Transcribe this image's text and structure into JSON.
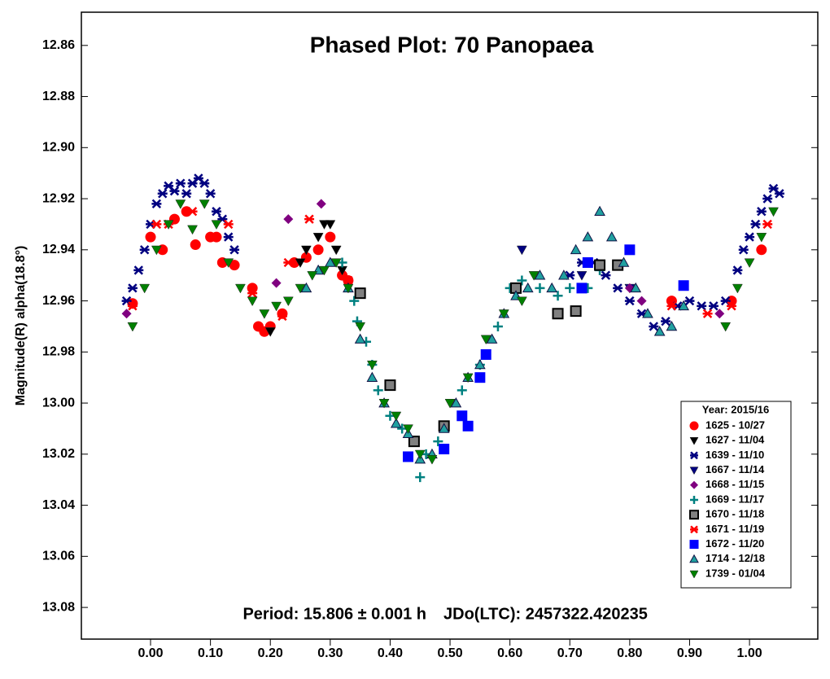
{
  "chart_data": {
    "type": "scatter",
    "title": "Phased Plot: 70 Panopaea",
    "ylabel": "Magnitude(R) alpha(18.8°)",
    "annotations": [
      "Period: 15.806 ± 0.001 h",
      "JDo(LTC): 2457322.420235"
    ],
    "legend_title": "Year: 2015/16",
    "legend": "lower right",
    "y_inverted": true,
    "xlim": [
      -0.1155,
      1.114
    ],
    "ylim": [
      12.847,
      13.0924
    ],
    "xticks": [
      {
        "value": 0,
        "label": "0.00"
      },
      {
        "value": 0.1,
        "label": "0.10"
      },
      {
        "value": 0.2,
        "label": "0.20"
      },
      {
        "value": 0.3,
        "label": "0.30"
      },
      {
        "value": 0.4,
        "label": "0.40"
      },
      {
        "value": 0.5,
        "label": "0.50"
      },
      {
        "value": 0.6,
        "label": "0.60"
      },
      {
        "value": 0.7,
        "label": "0.70"
      },
      {
        "value": 0.8,
        "label": "0.80"
      },
      {
        "value": 0.9,
        "label": "0.90"
      },
      {
        "value": 1,
        "label": "1.00"
      }
    ],
    "yticks": [
      12.86,
      12.88,
      {
        "value": 12.9,
        "label": "12.90"
      },
      12.92,
      12.94,
      12.96,
      12.98,
      {
        "value": 13,
        "label": "13.00"
      },
      13.02,
      13.04,
      13.06,
      13.08
    ],
    "series": [
      {
        "name": "1625 - 10/27",
        "color": "#ff0000",
        "marker": "circle",
        "x": [
          -0.03,
          0.0,
          0.02,
          0.04,
          0.06,
          0.075,
          0.1,
          0.11,
          0.12,
          0.14,
          0.17,
          0.18,
          0.19,
          0.2,
          0.22,
          0.24,
          0.26,
          0.28,
          0.3,
          0.32,
          0.33,
          0.87,
          0.97,
          1.02
        ],
        "values": [
          12.961,
          12.935,
          12.94,
          12.928,
          12.925,
          12.938,
          12.935,
          12.935,
          12.945,
          12.946,
          12.955,
          12.97,
          12.972,
          12.97,
          12.965,
          12.945,
          12.943,
          12.94,
          12.935,
          12.95,
          12.952,
          12.96,
          12.96,
          12.94
        ]
      },
      {
        "name": "1627 - 11/04",
        "color": "#000000",
        "marker": "tridown",
        "x": [
          0.2,
          0.25,
          0.26,
          0.28,
          0.29,
          0.3,
          0.31,
          0.32
        ],
        "values": [
          12.972,
          12.945,
          12.94,
          12.935,
          12.93,
          12.93,
          12.94,
          12.948
        ]
      },
      {
        "name": "1639 - 11/10",
        "color": "#000080",
        "marker": "asterisk",
        "x": [
          -0.04,
          -0.03,
          -0.02,
          -0.01,
          0.0,
          0.01,
          0.02,
          0.03,
          0.04,
          0.05,
          0.06,
          0.07,
          0.08,
          0.09,
          0.1,
          0.11,
          0.12,
          0.13,
          0.14,
          0.7,
          0.72,
          0.74,
          0.76,
          0.78,
          0.8,
          0.82,
          0.84,
          0.86,
          0.88,
          0.9,
          0.92,
          0.94,
          0.96,
          0.98,
          0.99,
          1.0,
          1.01,
          1.02,
          1.03,
          1.04,
          1.05
        ],
        "values": [
          12.96,
          12.955,
          12.948,
          12.94,
          12.93,
          12.922,
          12.918,
          12.915,
          12.917,
          12.914,
          12.918,
          12.914,
          12.912,
          12.914,
          12.918,
          12.925,
          12.928,
          12.935,
          12.94,
          12.95,
          12.945,
          12.945,
          12.95,
          12.955,
          12.96,
          12.965,
          12.97,
          12.968,
          12.962,
          12.96,
          12.962,
          12.962,
          12.96,
          12.948,
          12.94,
          12.935,
          12.93,
          12.925,
          12.92,
          12.916,
          12.918
        ]
      },
      {
        "name": "1667 - 11/14",
        "color": "#000080",
        "marker": "tridown",
        "x": [
          0.62,
          0.72,
          0.8
        ],
        "values": [
          12.94,
          12.95,
          12.955
        ]
      },
      {
        "name": "1668 - 11/15",
        "color": "#800080",
        "marker": "diamond",
        "x": [
          -0.04,
          0.21,
          0.23,
          0.285,
          0.8,
          0.82,
          0.95
        ],
        "values": [
          12.965,
          12.953,
          12.928,
          12.922,
          12.955,
          12.96,
          12.965
        ]
      },
      {
        "name": "1669 - 11/17",
        "color": "#008080",
        "marker": "plus",
        "x": [
          0.32,
          0.34,
          0.345,
          0.36,
          0.37,
          0.38,
          0.4,
          0.42,
          0.44,
          0.45,
          0.46,
          0.48,
          0.52,
          0.55,
          0.58,
          0.6,
          0.62,
          0.65,
          0.68,
          0.7,
          0.73,
          0.75
        ],
        "values": [
          12.945,
          12.96,
          12.968,
          12.976,
          12.985,
          12.995,
          13.005,
          13.01,
          13.015,
          13.029,
          13.02,
          13.015,
          12.995,
          12.985,
          12.97,
          12.955,
          12.952,
          12.955,
          12.958,
          12.955,
          12.955,
          12.948
        ]
      },
      {
        "name": "1670 - 11/18",
        "color": "#808080",
        "marker": "graysquare",
        "x": [
          0.35,
          0.4,
          0.44,
          0.49,
          0.61,
          0.68,
          0.71,
          0.75,
          0.78
        ],
        "values": [
          12.957,
          12.993,
          13.015,
          13.009,
          12.955,
          12.965,
          12.964,
          12.946,
          12.946
        ]
      },
      {
        "name": "1671 - 11/19",
        "color": "#ff0000",
        "marker": "asterisk",
        "x": [
          -0.03,
          0.01,
          0.03,
          0.07,
          0.13,
          0.17,
          0.22,
          0.23,
          0.265,
          0.33,
          0.87,
          0.93,
          0.97,
          1.03
        ],
        "values": [
          12.962,
          12.93,
          12.93,
          12.925,
          12.93,
          12.957,
          12.966,
          12.945,
          12.928,
          12.952,
          12.962,
          12.965,
          12.962,
          12.93
        ]
      },
      {
        "name": "1672 - 11/20",
        "color": "#0000ff",
        "marker": "square",
        "x": [
          0.43,
          0.49,
          0.52,
          0.53,
          0.55,
          0.56,
          0.73,
          0.72,
          0.8,
          0.89
        ],
        "values": [
          13.021,
          13.018,
          13.005,
          13.009,
          12.99,
          12.981,
          12.945,
          12.955,
          12.94,
          12.954
        ]
      },
      {
        "name": "1714 - 12/18",
        "color": "#20a0a0",
        "marker": "triup",
        "x": [
          0.26,
          0.28,
          0.3,
          0.33,
          0.35,
          0.37,
          0.39,
          0.41,
          0.43,
          0.45,
          0.47,
          0.49,
          0.51,
          0.53,
          0.55,
          0.57,
          0.59,
          0.61,
          0.63,
          0.65,
          0.67,
          0.69,
          0.71,
          0.73,
          0.75,
          0.77,
          0.79,
          0.81,
          0.83,
          0.85,
          0.87,
          0.89
        ],
        "values": [
          12.955,
          12.948,
          12.945,
          12.955,
          12.975,
          12.99,
          13.0,
          13.008,
          13.012,
          13.022,
          13.02,
          13.01,
          13.0,
          12.99,
          12.985,
          12.975,
          12.965,
          12.958,
          12.955,
          12.95,
          12.955,
          12.95,
          12.94,
          12.935,
          12.925,
          12.935,
          12.945,
          12.955,
          12.965,
          12.972,
          12.97,
          12.962
        ]
      },
      {
        "name": "1739 - 01/04",
        "color": "#008000",
        "marker": "tridown",
        "x": [
          -0.03,
          -0.01,
          0.01,
          0.03,
          0.05,
          0.07,
          0.09,
          0.11,
          0.13,
          0.15,
          0.17,
          0.19,
          0.21,
          0.23,
          0.25,
          0.27,
          0.29,
          0.31,
          0.33,
          0.35,
          0.37,
          0.39,
          0.41,
          0.43,
          0.45,
          0.47,
          0.5,
          0.53,
          0.56,
          0.59,
          0.62,
          0.64,
          0.96,
          0.98,
          1.0,
          1.02,
          1.04
        ],
        "values": [
          12.97,
          12.955,
          12.94,
          12.93,
          12.922,
          12.932,
          12.922,
          12.93,
          12.945,
          12.955,
          12.96,
          12.965,
          12.962,
          12.96,
          12.955,
          12.95,
          12.948,
          12.945,
          12.955,
          12.97,
          12.985,
          13.0,
          13.005,
          13.01,
          13.02,
          13.022,
          13.0,
          12.99,
          12.975,
          12.965,
          12.96,
          12.95,
          12.97,
          12.955,
          12.945,
          12.935,
          12.925
        ]
      }
    ]
  }
}
